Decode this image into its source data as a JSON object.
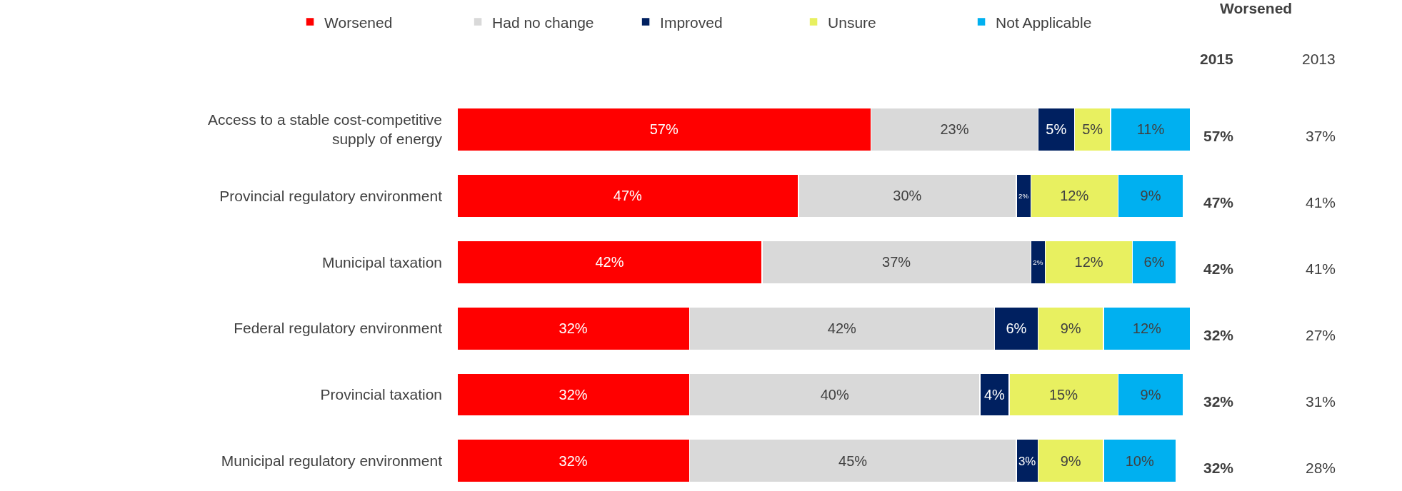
{
  "chart_data": {
    "type": "bar",
    "orientation": "horizontal",
    "stacked": true,
    "legend": "top",
    "tick_labels": "y",
    "categories": [
      "Access to a stable cost-competitive supply of energy",
      "Provincial regulatory environment",
      "Municipal taxation",
      "Federal regulatory environment",
      "Provincial taxation",
      "Municipal regulatory environment"
    ],
    "series": [
      {
        "name": "Worsened",
        "color": "#ff0000",
        "values": [
          57,
          47,
          42,
          32,
          32,
          32
        ],
        "value_labels": [
          "57%",
          "47%",
          "42%",
          "32%",
          "32%",
          "32%"
        ]
      },
      {
        "name": "Had no change",
        "color": "#d9d9d9",
        "values": [
          23,
          30,
          37,
          42,
          40,
          45
        ],
        "value_labels": [
          "23%",
          "30%",
          "37%",
          "42%",
          "40%",
          "45%"
        ]
      },
      {
        "name": "Improved",
        "color": "#002060",
        "values": [
          5,
          2,
          2,
          6,
          4,
          3
        ],
        "value_labels": [
          "5%",
          "2%",
          "2%",
          "6%",
          "4%",
          "3%"
        ]
      },
      {
        "name": "Unsure",
        "color": "#e8f060",
        "values": [
          5,
          12,
          12,
          9,
          15,
          9
        ],
        "value_labels": [
          "5%",
          "12%",
          "12%",
          "9%",
          "15%",
          "9%"
        ]
      },
      {
        "name": "Not Applicable",
        "color": "#00b0f0",
        "values": [
          11,
          9,
          6,
          12,
          9,
          10
        ],
        "value_labels": [
          "11%",
          "9%",
          "6%",
          "12%",
          "9%",
          "10%"
        ]
      }
    ],
    "annotations": [
      "Worsened",
      "2015",
      "2013",
      "57%",
      "37%",
      "47%",
      "41%",
      "42%",
      "41%",
      "32%",
      "27%",
      "32%",
      "31%",
      "32%",
      "28%"
    ]
  }
}
